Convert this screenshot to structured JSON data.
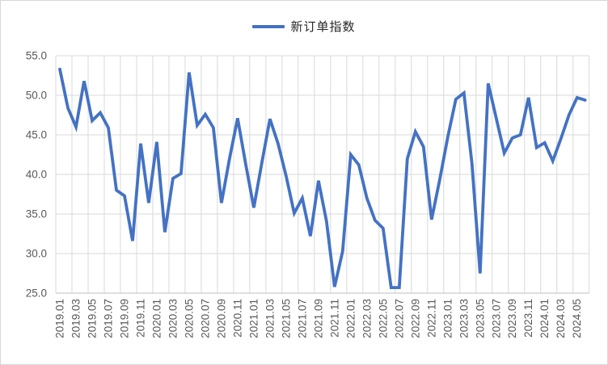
{
  "legend": {
    "label": "新订单指数",
    "line_color": "#4472C4"
  },
  "colors": {
    "series": "#4472C4",
    "gridline": "#D9D9D9",
    "axis_line": "#BFBFBF",
    "tick_text": "#595959"
  },
  "y_axis": {
    "tick_labels": [
      "55.0",
      "50.0",
      "45.0",
      "40.0",
      "35.0",
      "30.0",
      "25.0"
    ],
    "min": 25,
    "max": 55,
    "step": 5
  },
  "x_axis": {
    "tick_labels": [
      "2019.01",
      "2019.03",
      "2019.05",
      "2019.07",
      "2019.09",
      "2019.11",
      "2020.01",
      "2020.03",
      "2020.05",
      "2020.07",
      "2020.09",
      "2020.11",
      "2021.01",
      "2021.03",
      "2021.05",
      "2021.07",
      "2021.09",
      "2021.11",
      "2022.01",
      "2022.03",
      "2022.05",
      "2022.07",
      "2022.09",
      "2022.11",
      "2023.01",
      "2023.03",
      "2023.05",
      "2023.07",
      "2023.09",
      "2023.11",
      "2024.01",
      "2024.03",
      "2024.05"
    ]
  },
  "chart_data": {
    "type": "line",
    "title": "",
    "xlabel": "",
    "ylabel": "",
    "ylim": [
      25,
      55
    ],
    "grid": true,
    "legend_position": "top",
    "x": [
      "2019.01",
      "2019.02",
      "2019.03",
      "2019.04",
      "2019.05",
      "2019.06",
      "2019.07",
      "2019.08",
      "2019.09",
      "2019.10",
      "2019.11",
      "2019.12",
      "2020.01",
      "2020.02",
      "2020.03",
      "2020.04",
      "2020.05",
      "2020.06",
      "2020.07",
      "2020.08",
      "2020.09",
      "2020.10",
      "2020.11",
      "2020.12",
      "2021.01",
      "2021.02",
      "2021.03",
      "2021.04",
      "2021.05",
      "2021.06",
      "2021.07",
      "2021.08",
      "2021.09",
      "2021.10",
      "2021.11",
      "2021.12",
      "2022.01",
      "2022.02",
      "2022.03",
      "2022.04",
      "2022.05",
      "2022.06",
      "2022.07",
      "2022.08",
      "2022.09",
      "2022.10",
      "2022.11",
      "2022.12",
      "2023.01",
      "2023.02",
      "2023.03",
      "2023.04",
      "2023.05",
      "2023.06",
      "2023.07",
      "2023.08",
      "2023.09",
      "2023.10",
      "2023.11",
      "2023.12",
      "2024.01",
      "2024.02",
      "2024.03",
      "2024.04",
      "2024.05",
      "2024.06"
    ],
    "series": [
      {
        "name": "新订单指数",
        "color": "#4472C4",
        "values": [
          53.3,
          48.4,
          46.0,
          51.8,
          46.8,
          47.8,
          45.9,
          38.0,
          37.3,
          31.6,
          43.9,
          36.4,
          44.1,
          32.7,
          39.5,
          40.1,
          52.9,
          46.2,
          47.6,
          45.9,
          36.4,
          42.0,
          47.1,
          41.3,
          35.8,
          41.5,
          47.0,
          43.9,
          39.8,
          35.1,
          37.0,
          32.2,
          39.2,
          34.1,
          25.8,
          30.3,
          42.5,
          41.2,
          37.0,
          34.2,
          33.2,
          25.7,
          25.7,
          42.0,
          45.4,
          43.5,
          34.3,
          39.3,
          44.7,
          49.5,
          50.3,
          41.3,
          27.5,
          51.5,
          47.1,
          42.7,
          44.6,
          45.0,
          49.7,
          43.4,
          44.0,
          41.7,
          44.5,
          47.5,
          49.7,
          49.4
        ]
      }
    ]
  }
}
